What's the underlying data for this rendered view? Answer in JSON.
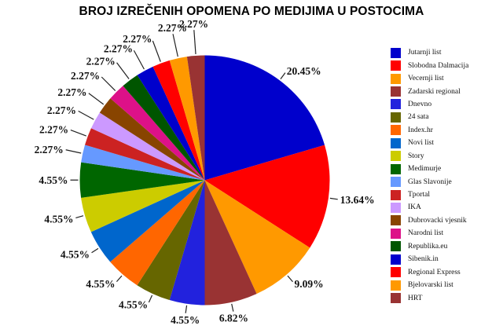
{
  "chart_data": {
    "type": "pie",
    "title": "BROJ IZREČENIH OPOMENA PO MEDIJIMA U POSTOCIMA",
    "legend_position": "right",
    "unit": "%",
    "start_angle_deg": 0,
    "direction": "clockwise",
    "slices": [
      {
        "label": "Jutarnji list",
        "value": 20.45,
        "display": "20.45%",
        "color": "#0000CC"
      },
      {
        "label": "Slobodna Dalmacija",
        "value": 13.64,
        "display": "13.64%",
        "color": "#FF0000"
      },
      {
        "label": "Vecernji list",
        "value": 9.09,
        "display": "9.09%",
        "color": "#FF9900"
      },
      {
        "label": "Zadarski regional",
        "value": 6.82,
        "display": "6.82%",
        "color": "#993333"
      },
      {
        "label": "Dnevno",
        "value": 4.55,
        "display": "4.55%",
        "color": "#2222DD"
      },
      {
        "label": "24 sata",
        "value": 4.55,
        "display": "4.55%",
        "color": "#666600"
      },
      {
        "label": "Index.hr",
        "value": 4.55,
        "display": "4.55%",
        "color": "#FF6600"
      },
      {
        "label": "Novi list",
        "value": 4.55,
        "display": "4.55%",
        "color": "#0066CC"
      },
      {
        "label": "Story",
        "value": 4.55,
        "display": "4.55%",
        "color": "#CCCC00"
      },
      {
        "label": "Medimurje",
        "value": 4.55,
        "display": "4.55%",
        "color": "#006600"
      },
      {
        "label": "Glas Slavonije",
        "value": 2.27,
        "display": "2.27%",
        "color": "#6699FF"
      },
      {
        "label": "Tportal",
        "value": 2.27,
        "display": "2.27%",
        "color": "#CC2222"
      },
      {
        "label": "IKA",
        "value": 2.27,
        "display": "2.27%",
        "color": "#CC99FF"
      },
      {
        "label": "Dubrovacki vjesnik",
        "value": 2.27,
        "display": "2.27%",
        "color": "#884400"
      },
      {
        "label": "Narodni list",
        "value": 2.27,
        "display": "2.27%",
        "color": "#DD1188"
      },
      {
        "label": "Republika.eu",
        "value": 2.27,
        "display": "2.27%",
        "color": "#005500"
      },
      {
        "label": "Sibenik.in",
        "value": 2.27,
        "display": "2.27%",
        "color": "#0000CC"
      },
      {
        "label": "Regional Express",
        "value": 2.27,
        "display": "2.27%",
        "color": "#FF0000"
      },
      {
        "label": "Bjelovarski list",
        "value": 2.27,
        "display": "2.27%",
        "color": "#FF9900"
      },
      {
        "label": "HRT",
        "value": 2.27,
        "display": "2.27%",
        "color": "#993333"
      }
    ]
  },
  "title": "BROJ IZREČENIH OPOMENA PO MEDIJIMA U POSTOCIMA"
}
